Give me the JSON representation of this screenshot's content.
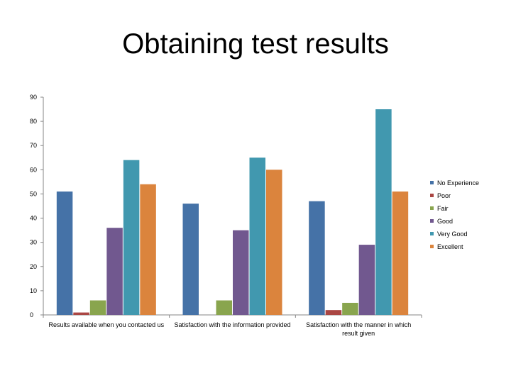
{
  "title": "Obtaining test results",
  "chart_data": {
    "type": "bar",
    "title": "Obtaining test results",
    "xlabel": "",
    "ylabel": "",
    "ylim": [
      0,
      90
    ],
    "yticks": [
      0,
      10,
      20,
      30,
      40,
      50,
      60,
      70,
      80,
      90
    ],
    "grid": false,
    "legend_position": "right",
    "categories": [
      [
        "Results available when you contacted us"
      ],
      [
        "Satisfaction with the information provided"
      ],
      [
        "Satisfaction with the manner in which",
        "result given"
      ]
    ],
    "series": [
      {
        "name": "No Experience",
        "color": "#4572a7",
        "values": [
          51,
          46,
          47
        ]
      },
      {
        "name": "Poor",
        "color": "#aa4643",
        "values": [
          1,
          0,
          2
        ]
      },
      {
        "name": "Fair",
        "color": "#89a54e",
        "values": [
          6,
          6,
          5
        ]
      },
      {
        "name": "Good",
        "color": "#71588f",
        "values": [
          36,
          35,
          29
        ]
      },
      {
        "name": "Very Good",
        "color": "#4198af",
        "values": [
          64,
          65,
          85
        ]
      },
      {
        "name": "Excellent",
        "color": "#db843d",
        "values": [
          54,
          60,
          51
        ]
      }
    ]
  }
}
